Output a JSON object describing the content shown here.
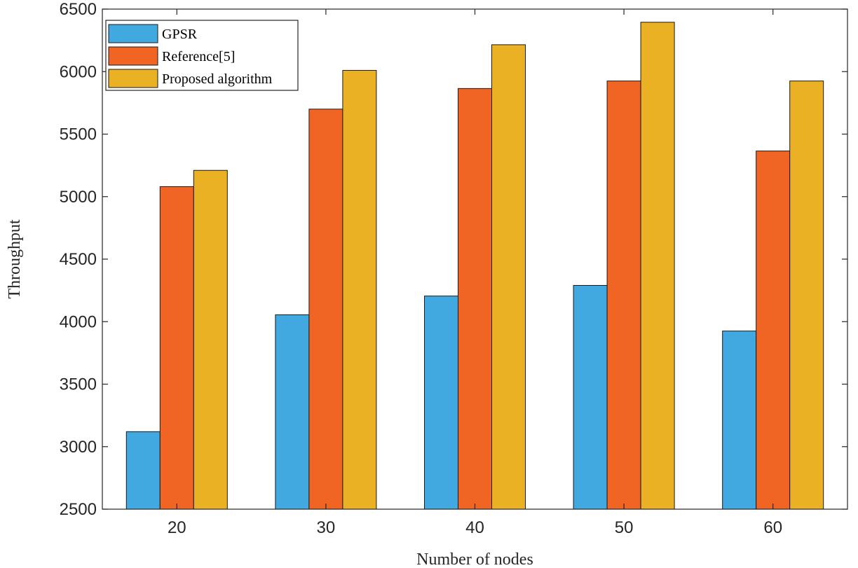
{
  "chart_data": {
    "type": "bar",
    "title": "",
    "xlabel": "Number of nodes",
    "ylabel": "Throughput",
    "categories": [
      "20",
      "30",
      "40",
      "50",
      "60"
    ],
    "ylim": [
      2500,
      6500
    ],
    "yticks": [
      2500,
      3000,
      3500,
      4000,
      4500,
      5000,
      5500,
      6000,
      6500
    ],
    "grid": false,
    "legend_position": "top-left",
    "series": [
      {
        "name": "GPSR",
        "color": "#41A9E0",
        "values": [
          3120,
          4055,
          4205,
          4290,
          3925
        ]
      },
      {
        "name": "Reference[5]",
        "color": "#F06424",
        "values": [
          5080,
          5700,
          5865,
          5925,
          5365
        ]
      },
      {
        "name": "Proposed algorithm",
        "color": "#EBB125",
        "values": [
          5210,
          6010,
          6215,
          6395,
          5925
        ]
      }
    ]
  }
}
